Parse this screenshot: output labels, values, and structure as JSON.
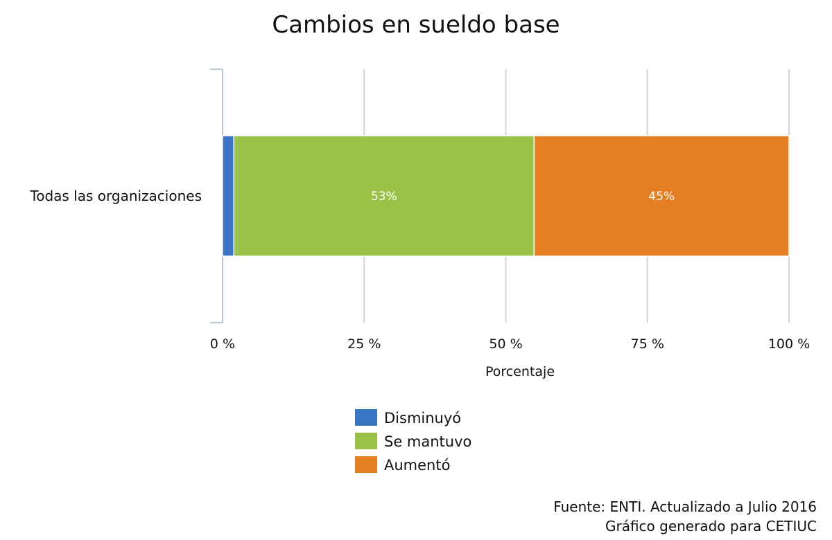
{
  "chart_data": {
    "type": "bar",
    "orientation": "horizontal",
    "stacked": true,
    "title": "Cambios en sueldo base",
    "xlabel": "Porcentaje",
    "ylabel": "",
    "xlim": [
      0,
      100
    ],
    "x_ticks": [
      "0 %",
      "25 %",
      "50 %",
      "75 %",
      "100 %"
    ],
    "categories": [
      "Todas las organizaciones"
    ],
    "series": [
      {
        "name": "Disminuyó",
        "values": [
          2
        ],
        "color": "#3a75c4",
        "label": ""
      },
      {
        "name": "Se mantuvo",
        "values": [
          53
        ],
        "color": "#9bc248",
        "label": "53%"
      },
      {
        "name": "Aumentó",
        "values": [
          45
        ],
        "color": "#e67e22",
        "label": "45%"
      }
    ],
    "grid": true,
    "legend_position": "bottom"
  },
  "footer": {
    "source": "Fuente: ENTI. Actualizado a Julio 2016",
    "generated": "Gráfico generado para CETIUC"
  }
}
